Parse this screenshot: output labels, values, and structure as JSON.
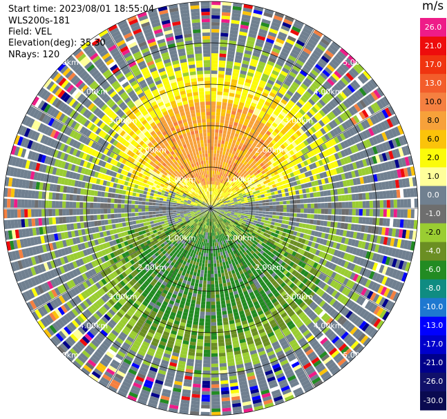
{
  "info": {
    "start_time": "Start time: 2023/08/01 18:55:04",
    "instrument": "WLS200s-181",
    "field": "Field: VEL",
    "elevation": "Elevation(deg): 35.30",
    "nrays": "NRays: 120"
  },
  "chart_data": {
    "type": "heatmap",
    "projection": "polar-ppi",
    "field": "VEL",
    "n_rays": 120,
    "max_range_km": 5.0,
    "range_rings_km": [
      1.0,
      2.0,
      3.0,
      4.0,
      5.0
    ],
    "ring_labels": [
      "1.00km",
      "2.00km",
      "3.00km",
      "4.00km",
      "5.00km"
    ],
    "colorbar": {
      "unit": "m/s",
      "levels": [
        {
          "label": "26.0",
          "color": "#ee1c88"
        },
        {
          "label": "21.0",
          "color": "#ee0c0c"
        },
        {
          "label": "17.0",
          "color": "#f03410"
        },
        {
          "label": "13.0",
          "color": "#f35d2b"
        },
        {
          "label": "10.0",
          "color": "#f58040"
        },
        {
          "label": "8.0",
          "color": "#f7a13a"
        },
        {
          "label": "6.0",
          "color": "#fbc30a"
        },
        {
          "label": "2.0",
          "color": "#fbfb0a"
        },
        {
          "label": "1.0",
          "color": "#ffff9a"
        },
        {
          "label": "0.0",
          "color": "#708090"
        },
        {
          "label": "-1.0",
          "color": "#6e6e6e"
        },
        {
          "label": "-2.0",
          "color": "#9acd32"
        },
        {
          "label": "-4.0",
          "color": "#6b8e23"
        },
        {
          "label": "-6.0",
          "color": "#228b22"
        },
        {
          "label": "-8.0",
          "color": "#0f8c82"
        },
        {
          "label": "-10.0",
          "color": "#1e78d0"
        },
        {
          "label": "-13.0",
          "color": "#0000ff"
        },
        {
          "label": "-17.0",
          "color": "#0000cc"
        },
        {
          "label": "-21.0",
          "color": "#00008b"
        },
        {
          "label": "-26.0",
          "color": "#10106a"
        },
        {
          "label": "-30.0",
          "color": "#0a0a50"
        }
      ]
    },
    "velocity_pattern": {
      "north_half_mean_ms": 3.0,
      "south_half_mean_ms": -4.0,
      "core_region_km": 3.6
    }
  }
}
